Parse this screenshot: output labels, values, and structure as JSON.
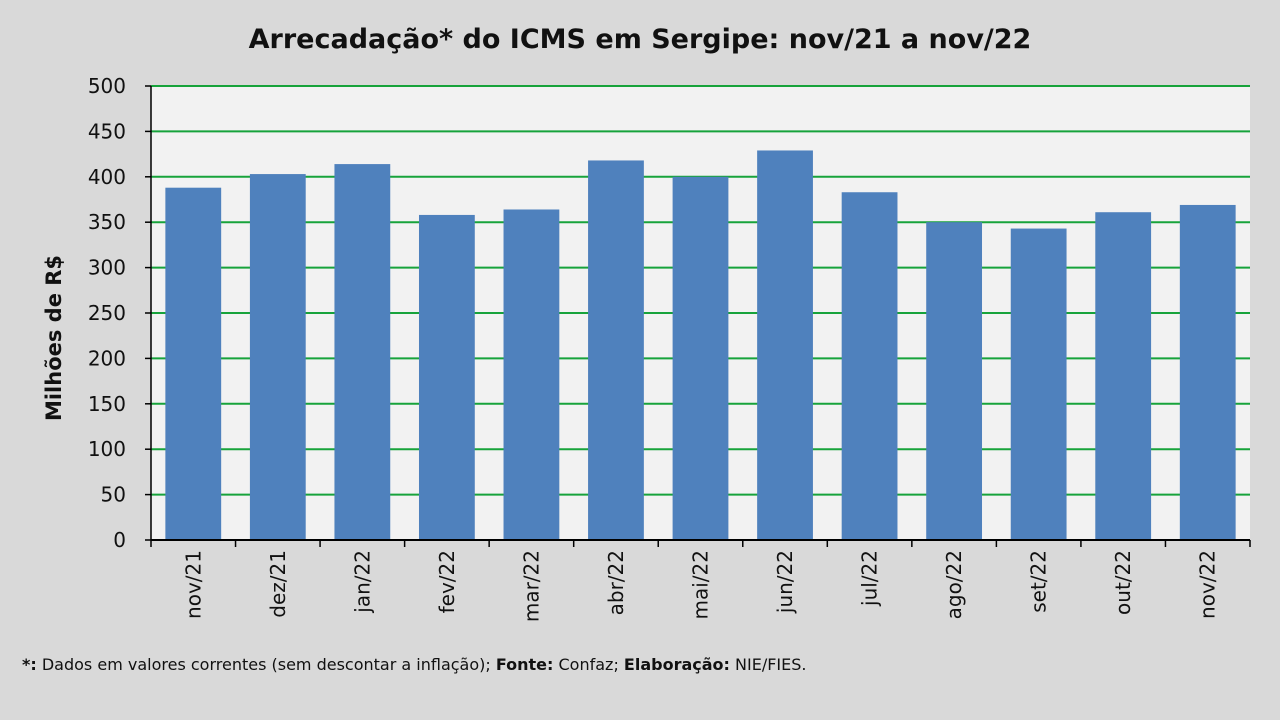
{
  "chart_data": {
    "type": "bar",
    "title": "Arrecadação* do ICMS em Sergipe: nov/21 a nov/22",
    "xlabel": "",
    "ylabel": "Milhões de R$",
    "ylim": [
      0,
      500
    ],
    "yticks": [
      0,
      50,
      100,
      150,
      200,
      250,
      300,
      350,
      400,
      450,
      500
    ],
    "grid": true,
    "categories": [
      "nov/21",
      "dez/21",
      "jan/22",
      "fev/22",
      "mar/22",
      "abr/22",
      "mai/22",
      "jun/22",
      "jul/22",
      "ago/22",
      "set/22",
      "out/22",
      "nov/22"
    ],
    "values": [
      388,
      403,
      414,
      358,
      364,
      418,
      400,
      429,
      383,
      350,
      343,
      361,
      369
    ]
  },
  "colors": {
    "bar": "#4f81bd",
    "grid": "#17a33b",
    "plot_background": "#f2f2f2",
    "page_background": "#d9d9d9"
  },
  "footnote": {
    "marker": "*:",
    "note": " Dados em valores correntes (sem descontar a inflação); ",
    "source_label": "Fonte:",
    "source": " Confaz; ",
    "elaboration_label": "Elaboração:",
    "elaboration": " NIE/FIES."
  }
}
